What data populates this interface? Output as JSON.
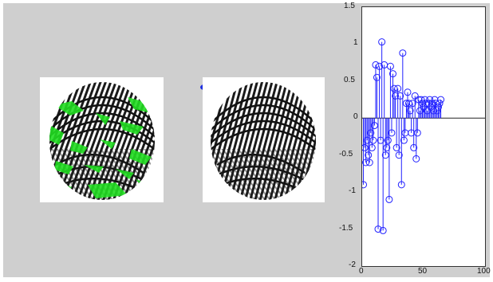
{
  "figure": {
    "marker_color": "#1d2fe0",
    "fingerprint_left": {
      "label": "fingerprint with minutiae overlay",
      "overlay_color": "#22dd22"
    },
    "fingerprint_right": {
      "label": "fingerprint"
    }
  },
  "chart_data": {
    "type": "stem",
    "color": "#2222ff",
    "xlim": [
      0,
      100
    ],
    "ylim": [
      -2,
      1.5
    ],
    "x_ticks": [
      "0",
      "50",
      "100"
    ],
    "y_ticks": [
      "1.5",
      "1",
      "0.5",
      "0",
      "-0.5",
      "-1",
      "-1.5",
      "-2"
    ],
    "grid": false,
    "x": [
      1,
      2,
      3,
      4,
      5,
      6,
      7,
      8,
      9,
      10,
      11,
      12,
      13,
      14,
      15,
      16,
      17,
      18,
      19,
      20,
      21,
      22,
      23,
      24,
      25,
      26,
      27,
      28,
      29,
      30,
      31,
      32,
      33,
      34,
      35,
      36,
      37,
      38,
      39,
      40,
      41,
      42,
      43,
      44,
      45,
      46,
      47,
      48,
      49,
      50,
      51,
      52,
      53,
      54,
      55,
      56,
      57,
      58,
      59,
      60,
      61,
      62,
      63,
      64
    ],
    "values": [
      -0.9,
      -0.4,
      -0.6,
      -0.3,
      -0.5,
      -0.6,
      -0.2,
      -0.4,
      -0.3,
      -0.1,
      0.72,
      0.55,
      -1.5,
      0.7,
      -0.3,
      1.03,
      -1.52,
      0.72,
      -0.5,
      -0.4,
      -0.3,
      -1.1,
      0.7,
      -0.2,
      0.6,
      0.4,
      0.3,
      -0.4,
      0.4,
      -0.5,
      0.3,
      -0.9,
      0.88,
      -0.3,
      -0.2,
      0.2,
      0.35,
      0.2,
      0.1,
      -0.2,
      0.2,
      -0.4,
      0.3,
      -0.55,
      -0.2,
      0.25,
      0.1,
      0.25,
      0.2,
      0.15,
      0.25,
      0.2,
      0.1,
      0.2,
      0.25,
      0.15,
      0.2,
      0.1,
      0.25,
      0.2,
      0.1,
      0.15,
      0.2,
      0.25
    ]
  }
}
